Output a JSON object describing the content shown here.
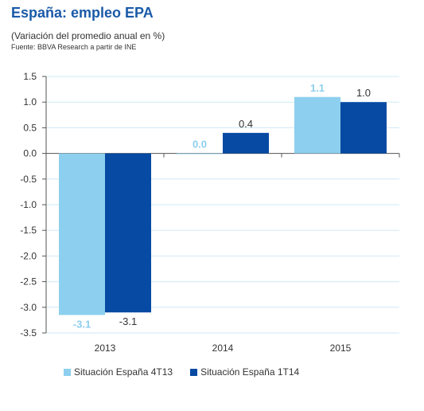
{
  "header": {
    "title": "España: empleo EPA",
    "subtitle": "(Variación del promedio anual en %)",
    "source": "Fuente: BBVA Research a partir de INE"
  },
  "chart_data": {
    "type": "bar",
    "categories": [
      "2013",
      "2014",
      "2015"
    ],
    "series": [
      {
        "name": "Situación España 4T13",
        "color": "#8dcfee",
        "label_color": "#8dcfee",
        "values": [
          -3.15,
          0.0,
          1.1
        ],
        "labels": [
          "-3.1",
          "0.0",
          "1.1"
        ]
      },
      {
        "name": "Situación España 1T14",
        "color": "#064aa3",
        "label_color": "#333333",
        "values": [
          -3.1,
          0.4,
          1.0
        ],
        "labels": [
          "-3.1",
          "0.4",
          "1.0"
        ]
      }
    ],
    "ylim": [
      -3.5,
      1.5
    ],
    "yticks": [
      "1.5",
      "1.0",
      "0.5",
      "0.0",
      "-0.5",
      "-1.0",
      "-1.5",
      "-2.0",
      "-2.5",
      "-3.0",
      "-3.5"
    ],
    "grid": true,
    "gridColor": "#cfeaf6",
    "legend_position": "bottom"
  }
}
